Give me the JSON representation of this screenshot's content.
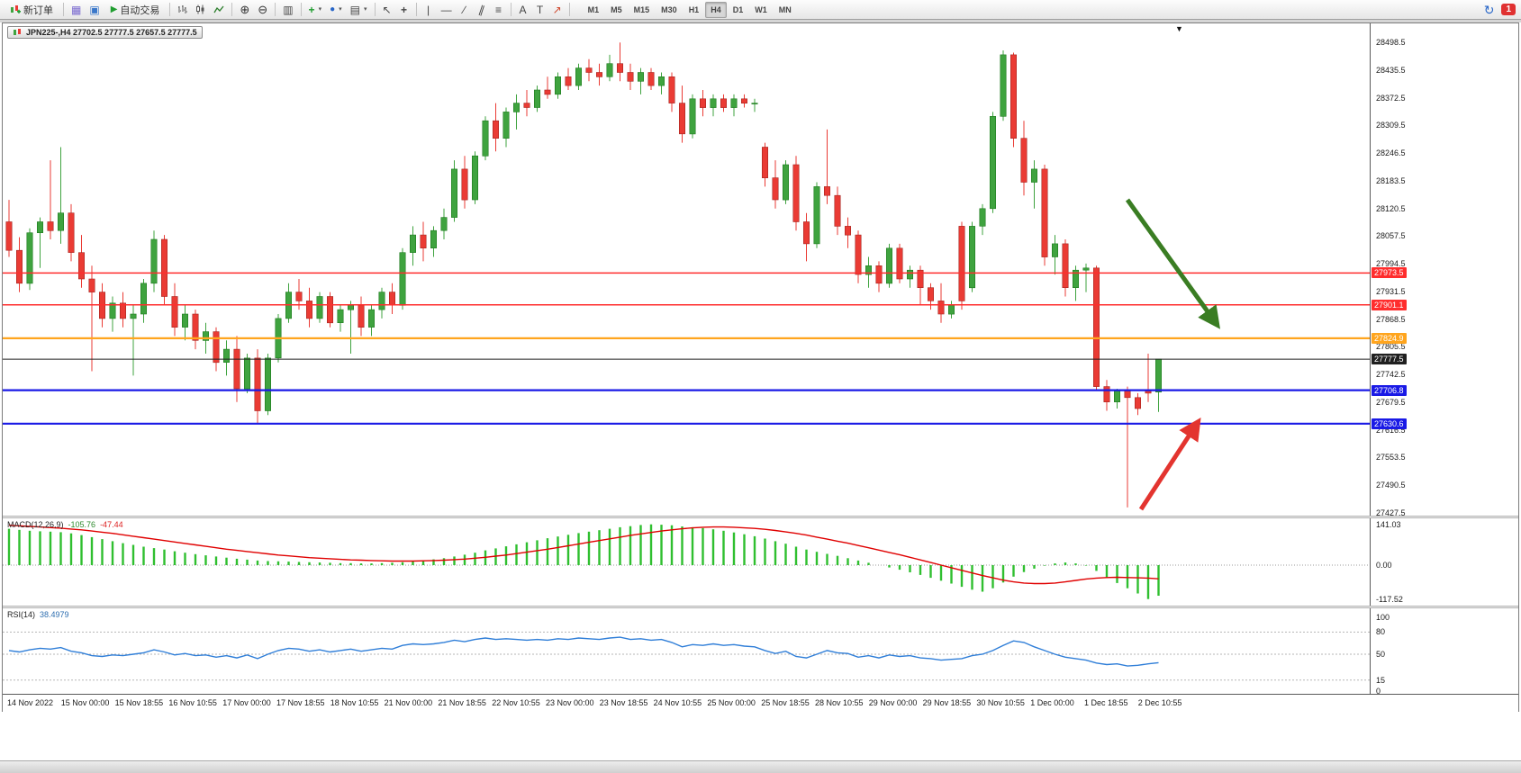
{
  "toolbar": {
    "new_order_label": "新订单",
    "auto_trading_label": "自动交易",
    "timeframes": [
      "M1",
      "M5",
      "M15",
      "M30",
      "H1",
      "H4",
      "D1",
      "W1",
      "MN"
    ],
    "active_timeframe": "H4",
    "badge": "1",
    "glyphs": {
      "profile": "▦",
      "data_window": "▣",
      "play": "▶",
      "zoom_in": "⊕",
      "zoom_out": "⊖",
      "tile": "▥",
      "add": "+",
      "clock": "●",
      "template": "▤",
      "caret": "▾",
      "cursor": "↖",
      "crosshair": "+",
      "vline": "|",
      "hline": "—",
      "tline": "∕",
      "channel": "∥",
      "fibo": "≡",
      "text": "A",
      "label": "T",
      "arrows": "↗",
      "refresh": "↻",
      "shift_marker": "▼"
    }
  },
  "chart": {
    "symbol_label": "JPN225-,H4 27702.5 27777.5 27657.5 27777.5",
    "price_scale": {
      "labels": [
        "28498.5",
        "28435.5",
        "28372.5",
        "28309.5",
        "28246.5",
        "28183.5",
        "28120.5",
        "28057.5",
        "27994.5",
        "27931.5",
        "27868.5",
        "27805.5",
        "27742.5",
        "27679.5",
        "27616.5",
        "27553.5",
        "27490.5",
        "27427.5"
      ]
    },
    "levels": [
      {
        "name": "resistance-1",
        "price": 27973.5,
        "label": "27973.5",
        "color": "#FF2D2D",
        "weight": 1.5
      },
      {
        "name": "resistance-2",
        "price": 27901.1,
        "label": "27901.1",
        "color": "#FF2D2D",
        "weight": 1.5
      },
      {
        "name": "pivot-orange",
        "price": 27824.9,
        "label": "27824.9",
        "color": "#FFA51E",
        "weight": 2.2
      },
      {
        "name": "bid-line",
        "price": 27777.5,
        "label": "27777.5",
        "color": "#202020",
        "weight": 1
      },
      {
        "name": "support-1",
        "price": 27706.8,
        "label": "27706.8",
        "color": "#1A1AE6",
        "weight": 2.2
      },
      {
        "name": "support-2",
        "price": 27630.6,
        "label": "27630.6",
        "color": "#1A1AE6",
        "weight": 2.2
      }
    ],
    "arrows": [
      {
        "name": "sell-signal-arrow",
        "color": "#3A7D23",
        "from": [
          1249,
          196
        ],
        "to": [
          1345,
          330
        ]
      },
      {
        "name": "buy-signal-arrow",
        "color": "#E3342F",
        "from": [
          1264,
          540
        ],
        "to": [
          1324,
          448
        ]
      }
    ]
  },
  "chart_data": {
    "type": "candlestick",
    "symbol": "JPN225-",
    "timeframe": "H4",
    "current_ohlc": {
      "open": 27702.5,
      "high": 27777.5,
      "low": 27657.5,
      "close": 27777.5
    },
    "price_axis": {
      "min": 27427.5,
      "max": 28498.5,
      "tick_step": 63
    },
    "colors": {
      "up": "#3FA33F",
      "down": "#EA3B34"
    },
    "ohlc": [
      [
        28090,
        28140,
        28010,
        28025
      ],
      [
        28025,
        28055,
        27930,
        27950
      ],
      [
        27950,
        28075,
        27935,
        28065
      ],
      [
        28065,
        28100,
        27985,
        28090
      ],
      [
        28090,
        28230,
        28050,
        28070
      ],
      [
        28070,
        28260,
        28040,
        28110
      ],
      [
        28110,
        28130,
        28000,
        28020
      ],
      [
        28020,
        28060,
        27940,
        27960
      ],
      [
        27960,
        27990,
        27750,
        27930
      ],
      [
        27930,
        27950,
        27850,
        27870
      ],
      [
        27870,
        27920,
        27840,
        27905
      ],
      [
        27905,
        27930,
        27850,
        27870
      ],
      [
        27870,
        27900,
        27740,
        27880
      ],
      [
        27880,
        27960,
        27860,
        27950
      ],
      [
        27950,
        28070,
        27930,
        28050
      ],
      [
        28050,
        28060,
        27900,
        27920
      ],
      [
        27920,
        27950,
        27830,
        27850
      ],
      [
        27850,
        27900,
        27820,
        27880
      ],
      [
        27880,
        27890,
        27800,
        27820
      ],
      [
        27820,
        27860,
        27790,
        27840
      ],
      [
        27840,
        27850,
        27750,
        27770
      ],
      [
        27770,
        27820,
        27740,
        27800
      ],
      [
        27800,
        27830,
        27680,
        27710
      ],
      [
        27710,
        27790,
        27700,
        27780
      ],
      [
        27780,
        27800,
        27630,
        27660
      ],
      [
        27660,
        27790,
        27650,
        27780
      ],
      [
        27780,
        27880,
        27770,
        27870
      ],
      [
        27870,
        27950,
        27860,
        27930
      ],
      [
        27930,
        27960,
        27890,
        27910
      ],
      [
        27910,
        27940,
        27850,
        27870
      ],
      [
        27870,
        27930,
        27860,
        27920
      ],
      [
        27920,
        27930,
        27850,
        27860
      ],
      [
        27860,
        27900,
        27840,
        27890
      ],
      [
        27890,
        27910,
        27790,
        27900
      ],
      [
        27900,
        27920,
        27830,
        27850
      ],
      [
        27850,
        27900,
        27830,
        27890
      ],
      [
        27890,
        27940,
        27870,
        27930
      ],
      [
        27930,
        27950,
        27880,
        27900
      ],
      [
        27900,
        28030,
        27890,
        28020
      ],
      [
        28020,
        28080,
        27990,
        28060
      ],
      [
        28060,
        28090,
        28000,
        28030
      ],
      [
        28030,
        28080,
        28010,
        28070
      ],
      [
        28070,
        28120,
        28050,
        28100
      ],
      [
        28100,
        28230,
        28090,
        28210
      ],
      [
        28210,
        28240,
        28120,
        28140
      ],
      [
        28140,
        28250,
        28130,
        28240
      ],
      [
        28240,
        28330,
        28230,
        28320
      ],
      [
        28320,
        28360,
        28250,
        28280
      ],
      [
        28280,
        28350,
        28260,
        28340
      ],
      [
        28340,
        28380,
        28300,
        28360
      ],
      [
        28360,
        28390,
        28330,
        28350
      ],
      [
        28350,
        28400,
        28340,
        28390
      ],
      [
        28390,
        28420,
        28370,
        28380
      ],
      [
        28380,
        28430,
        28370,
        28420
      ],
      [
        28420,
        28440,
        28390,
        28400
      ],
      [
        28400,
        28450,
        28390,
        28440
      ],
      [
        28440,
        28460,
        28410,
        28430
      ],
      [
        28430,
        28450,
        28400,
        28420
      ],
      [
        28420,
        28470,
        28410,
        28450
      ],
      [
        28450,
        28498,
        28410,
        28430
      ],
      [
        28430,
        28450,
        28390,
        28410
      ],
      [
        28410,
        28440,
        28380,
        28430
      ],
      [
        28430,
        28440,
        28390,
        28400
      ],
      [
        28400,
        28430,
        28380,
        28420
      ],
      [
        28420,
        28430,
        28340,
        28360
      ],
      [
        28360,
        28400,
        28270,
        28290
      ],
      [
        28290,
        28380,
        28280,
        28370
      ],
      [
        28370,
        28390,
        28330,
        28350
      ],
      [
        28350,
        28380,
        28330,
        28370
      ],
      [
        28370,
        28380,
        28340,
        28350
      ],
      [
        28350,
        28380,
        28330,
        28370
      ],
      [
        28370,
        28380,
        28350,
        28360
      ],
      [
        28360,
        28370,
        28340,
        28360
      ],
      [
        28260,
        28270,
        28170,
        28190
      ],
      [
        28190,
        28230,
        28120,
        28140
      ],
      [
        28140,
        28230,
        28130,
        28220
      ],
      [
        28220,
        28240,
        28070,
        28090
      ],
      [
        28090,
        28110,
        28000,
        28040
      ],
      [
        28040,
        28180,
        28030,
        28170
      ],
      [
        28170,
        28300,
        28130,
        28150
      ],
      [
        28150,
        28170,
        28060,
        28080
      ],
      [
        28080,
        28100,
        28030,
        28060
      ],
      [
        28060,
        28070,
        27950,
        27970
      ],
      [
        27970,
        28010,
        27940,
        27990
      ],
      [
        27990,
        28000,
        27930,
        27950
      ],
      [
        27950,
        28040,
        27940,
        28030
      ],
      [
        28030,
        28040,
        27950,
        27960
      ],
      [
        27960,
        27990,
        27940,
        27980
      ],
      [
        27980,
        27990,
        27900,
        27940
      ],
      [
        27940,
        27950,
        27890,
        27910
      ],
      [
        27910,
        27950,
        27860,
        27880
      ],
      [
        27880,
        27910,
        27870,
        27900
      ],
      [
        28080,
        28090,
        27890,
        27910
      ],
      [
        27940,
        28090,
        27930,
        28080
      ],
      [
        28080,
        28130,
        28060,
        28120
      ],
      [
        28120,
        28340,
        28110,
        28330
      ],
      [
        28330,
        28480,
        28320,
        28470
      ],
      [
        28470,
        28475,
        28260,
        28280
      ],
      [
        28280,
        28320,
        28150,
        28180
      ],
      [
        28180,
        28230,
        28120,
        28210
      ],
      [
        28210,
        28220,
        27990,
        28010
      ],
      [
        28010,
        28060,
        27970,
        28040
      ],
      [
        28040,
        28050,
        27920,
        27940
      ],
      [
        27940,
        27990,
        27910,
        27980
      ],
      [
        27980,
        27995,
        27930,
        27985
      ],
      [
        27985,
        27990,
        27705,
        27715
      ],
      [
        27715,
        27730,
        27660,
        27680
      ],
      [
        27680,
        27710,
        27665,
        27705
      ],
      [
        27705,
        27715,
        27440,
        27690
      ],
      [
        27690,
        27700,
        27650,
        27665
      ],
      [
        27705,
        27790,
        27680,
        27700
      ],
      [
        27702.5,
        27777.5,
        27657.5,
        27777.5
      ]
    ],
    "time_labels": [
      "14 Nov 2022",
      "15 Nov 00:00",
      "15 Nov 18:55",
      "16 Nov 10:55",
      "17 Nov 00:00",
      "17 Nov 18:55",
      "18 Nov 10:55",
      "21 Nov 00:00",
      "21 Nov 18:55",
      "22 Nov 10:55",
      "23 Nov 00:00",
      "23 Nov 18:55",
      "24 Nov 10:55",
      "25 Nov 00:00",
      "25 Nov 18:55",
      "28 Nov 10:55",
      "29 Nov 00:00",
      "29 Nov 18:55",
      "30 Nov 10:55",
      "1 Dec 00:00",
      "1 Dec 18:55",
      "2 Dec 10:55"
    ],
    "indicators": {
      "macd": {
        "label": "MACD(12,26,9)",
        "values_text": [
          "-105.76",
          "-47.44"
        ],
        "histogram_color": "#2FBF2F",
        "signal_color": "#E00000",
        "scale_ticks": [
          {
            "label": "141.03",
            "value": 141.03
          },
          {
            "label": "0.00",
            "value": 0
          },
          {
            "label": "-117.52",
            "value": -117.52
          }
        ],
        "histogram": [
          126,
          122,
          119,
          117,
          116,
          114,
          110,
          104,
          97,
          90,
          83,
          76,
          70,
          64,
          59,
          54,
          48,
          43,
          38,
          34,
          30,
          26,
          22,
          19,
          16,
          14,
          13,
          12,
          11,
          10,
          9,
          8,
          7,
          7,
          6,
          6,
          7,
          8,
          10,
          13,
          16,
          20,
          24,
          30,
          36,
          43,
          51,
          58,
          65,
          72,
          79,
          86,
          93,
          99,
          105,
          111,
          116,
          121,
          126,
          131,
          135,
          139,
          141,
          140,
          138,
          134,
          131,
          128,
          124,
          119,
          113,
          107,
          100,
          92,
          83,
          74,
          64,
          54,
          46,
          39,
          32,
          24,
          16,
          8,
          0,
          -8,
          -16,
          -25,
          -34,
          -44,
          -54,
          -64,
          -75,
          -85,
          -92,
          -80,
          -60,
          -40,
          -24,
          -12,
          -2,
          6,
          9,
          6,
          -2,
          -20,
          -42,
          -62,
          -80,
          -98,
          -117.52,
          -105.76
        ],
        "signal": [
          138,
          136,
          134,
          132,
          130,
          128,
          125,
          122,
          118,
          114,
          110,
          105,
          100,
          95,
          90,
          85,
          80,
          75,
          70,
          65,
          60,
          55,
          51,
          47,
          43,
          39,
          35,
          32,
          29,
          26,
          24,
          22,
          20,
          18,
          17,
          16,
          15,
          14,
          14,
          14,
          15,
          16,
          17,
          19,
          21,
          24,
          27,
          31,
          35,
          40,
          45,
          50,
          55,
          61,
          67,
          73,
          79,
          85,
          91,
          97,
          103,
          108,
          113,
          118,
          122,
          126,
          129,
          131,
          132,
          132,
          131,
          129,
          127,
          124,
          120,
          115,
          110,
          104,
          97,
          90,
          83,
          76,
          68,
          60,
          52,
          44,
          36,
          27,
          18,
          9,
          0,
          -9,
          -18,
          -27,
          -36,
          -44,
          -52,
          -58,
          -62,
          -64,
          -64,
          -62,
          -58,
          -53,
          -48,
          -45,
          -43,
          -42,
          -43,
          -44,
          -45,
          -47.44
        ]
      },
      "rsi": {
        "label": "RSI(14)",
        "value_text": "38.4979",
        "color": "#2F7ED8",
        "levels": [
          80,
          50,
          15
        ],
        "scale_ticks": [
          {
            "label": "100",
            "value": 100
          },
          {
            "label": "80",
            "value": 80
          },
          {
            "label": "50",
            "value": 50
          },
          {
            "label": "15",
            "value": 15
          },
          {
            "label": "0",
            "value": 0
          }
        ],
        "values": [
          55,
          53,
          56,
          58,
          57,
          59,
          54,
          52,
          48,
          47,
          49,
          48,
          50,
          52,
          56,
          53,
          49,
          51,
          48,
          49,
          46,
          48,
          45,
          49,
          44,
          50,
          55,
          58,
          57,
          54,
          56,
          53,
          55,
          57,
          54,
          56,
          58,
          57,
          62,
          64,
          63,
          64,
          66,
          69,
          67,
          70,
          72,
          70,
          71,
          70,
          69,
          70,
          69,
          71,
          70,
          72,
          71,
          70,
          72,
          73,
          70,
          71,
          69,
          70,
          66,
          60,
          63,
          62,
          64,
          62,
          63,
          61,
          60,
          55,
          51,
          54,
          47,
          45,
          50,
          55,
          52,
          51,
          46,
          48,
          45,
          49,
          47,
          48,
          45,
          44,
          42,
          43,
          44,
          48,
          50,
          55,
          62,
          68,
          66,
          60,
          55,
          50,
          46,
          44,
          42,
          38,
          36,
          37,
          34,
          35,
          37,
          38.5
        ]
      }
    }
  }
}
